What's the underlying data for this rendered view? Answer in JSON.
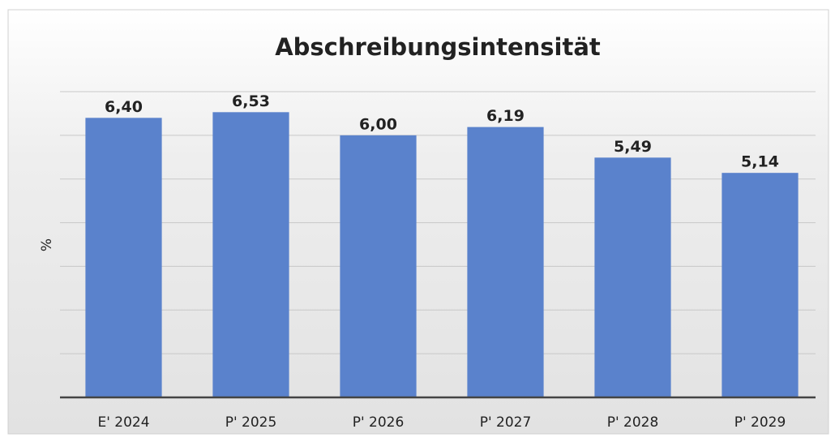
{
  "chart_data": {
    "type": "bar",
    "title": "Abschreibungsintensität",
    "ylabel": "%",
    "categories": [
      "E' 2024",
      "P' 2025",
      "P' 2026",
      "P' 2027",
      "P' 2028",
      "P' 2029"
    ],
    "values": [
      6.4,
      6.53,
      6.0,
      6.19,
      5.49,
      5.14
    ],
    "value_labels": [
      "6,40",
      "6,53",
      "6,00",
      "6,19",
      "5,49",
      "5,14"
    ],
    "color": "#5a82cc",
    "ylim": [
      0,
      7
    ],
    "yticks": [
      0,
      1,
      2,
      3,
      4,
      5,
      6,
      7
    ],
    "grid": true
  }
}
